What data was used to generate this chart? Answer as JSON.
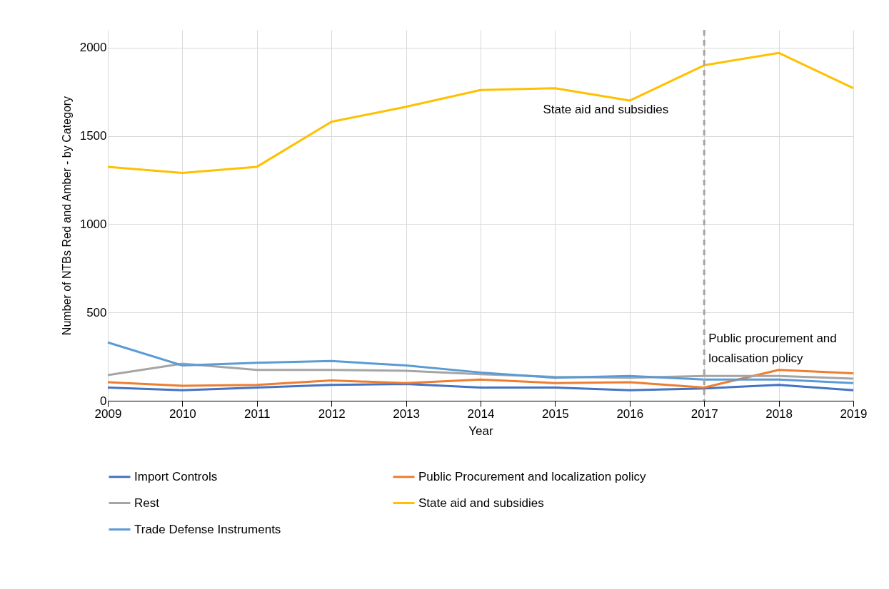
{
  "chart_data": {
    "type": "line",
    "xlabel": "Year",
    "ylabel": "Number of NTBs Red and Amber - by Category",
    "x": [
      2009,
      2010,
      2011,
      2012,
      2013,
      2014,
      2015,
      2016,
      2017,
      2018,
      2019
    ],
    "xlim": [
      2009,
      2019
    ],
    "xticks": [
      2009,
      2010,
      2011,
      2012,
      2013,
      2014,
      2015,
      2016,
      2017,
      2018,
      2019
    ],
    "ylim": [
      0,
      2100
    ],
    "yticks": [
      0,
      500,
      1000,
      1500,
      2000
    ],
    "grid": true,
    "legend": "bottom",
    "line_style": "solid",
    "series": [
      {
        "name": "Import Controls",
        "color": "#4472c4",
        "values": [
          75,
          60,
          75,
          90,
          95,
          75,
          75,
          60,
          70,
          90,
          60
        ]
      },
      {
        "name": "Public Procurement and localization policy",
        "color": "#ed7d31",
        "values": [
          105,
          85,
          90,
          115,
          100,
          120,
          100,
          105,
          75,
          175,
          155
        ]
      },
      {
        "name": "Rest",
        "color": "#a5a5a5",
        "values": [
          145,
          210,
          175,
          175,
          170,
          150,
          135,
          130,
          140,
          140,
          125
        ]
      },
      {
        "name": "State aid and subsidies",
        "color": "#ffc000",
        "values": [
          1325,
          1290,
          1325,
          1580,
          1665,
          1760,
          1770,
          1700,
          1900,
          1970,
          1770
        ]
      },
      {
        "name": "Trade Defense Instruments",
        "color": "#5b9bd5",
        "values": [
          330,
          200,
          215,
          225,
          200,
          160,
          130,
          140,
          120,
          120,
          100
        ]
      }
    ],
    "ref_lines": [
      {
        "axis": "x",
        "value": 2017,
        "label": "Public procurement and localisation policy",
        "color": "#a5a5a5",
        "line_style": "dashed"
      }
    ],
    "annotations": [
      "State aid and subsidies"
    ]
  }
}
